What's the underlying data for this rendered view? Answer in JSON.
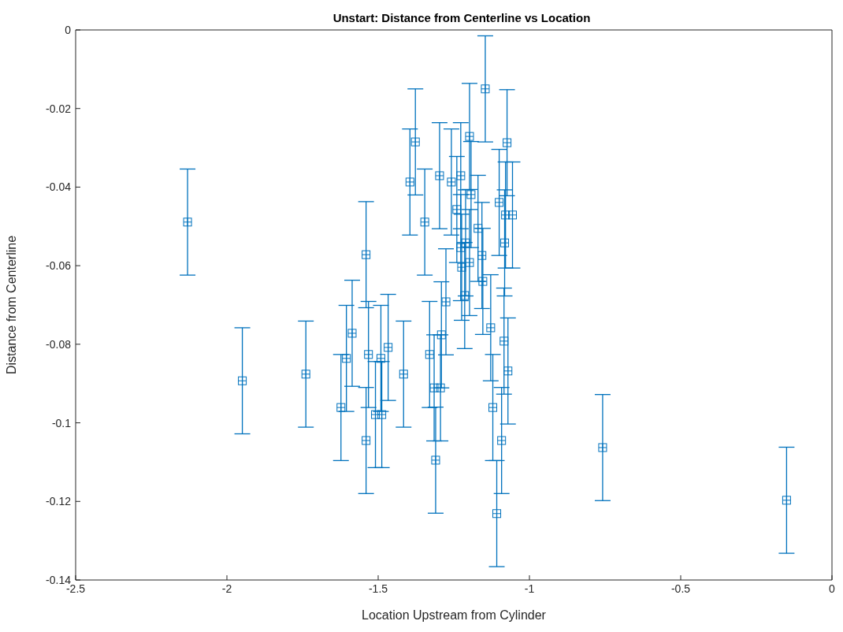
{
  "chart_data": {
    "type": "scatter",
    "title": "Unstart: Distance from Centerline vs Location",
    "xlabel": "Location Upstream from Cylinder",
    "ylabel": "Distance from Centerline",
    "xlim": [
      -2.5,
      0
    ],
    "xticks": [
      -2.5,
      -2,
      -1.5,
      -1,
      -0.5,
      0
    ],
    "ylim": [
      -0.14,
      0
    ],
    "yticks": [
      -0.14,
      -0.12,
      -0.1,
      -0.08,
      -0.06,
      -0.04,
      -0.02,
      0
    ],
    "grid": false,
    "marker": "square",
    "series": [
      {
        "color": "#0072bd",
        "x": [
          -2.13,
          -1.949,
          -1.739,
          -1.623,
          -1.605,
          -1.586,
          -1.54,
          -1.54,
          -1.532,
          -1.509,
          -1.491,
          -1.488,
          -1.467,
          -1.416,
          -1.395,
          -1.377,
          -1.346,
          -1.33,
          -1.315,
          -1.31,
          -1.297,
          -1.294,
          -1.291,
          -1.276,
          -1.258,
          -1.24,
          -1.227,
          -1.227,
          -1.224,
          -1.214,
          -1.211,
          -1.198,
          -1.198,
          -1.193,
          -1.17,
          -1.157,
          -1.154,
          -1.146,
          -1.128,
          -1.121,
          -1.108,
          -1.1,
          -1.092,
          -1.084,
          -1.082,
          -1.079,
          -1.074,
          -1.071,
          -1.056,
          -0.758,
          -0.15
        ],
        "values": [
          -0.0489,
          -0.0893,
          -0.0876,
          -0.0961,
          -0.0836,
          -0.0772,
          -0.0572,
          -0.1045,
          -0.0826,
          -0.0979,
          -0.0836,
          -0.0979,
          -0.0808,
          -0.0876,
          -0.0387,
          -0.0285,
          -0.0489,
          -0.0826,
          -0.0911,
          -0.1095,
          -0.0371,
          -0.0911,
          -0.0776,
          -0.0692,
          -0.0387,
          -0.0457,
          -0.0371,
          -0.0554,
          -0.0604,
          -0.0676,
          -0.0542,
          -0.0271,
          -0.0592,
          -0.0419,
          -0.0505,
          -0.0574,
          -0.064,
          -0.015,
          -0.0758,
          -0.0961,
          -0.1231,
          -0.0439,
          -0.1045,
          -0.0792,
          -0.0542,
          -0.0471,
          -0.0287,
          -0.0868,
          -0.0471,
          -0.1063,
          -0.1197
        ],
        "errors": [
          0.0135,
          0.0135,
          0.0135,
          0.0135,
          0.0135,
          0.0135,
          0.0135,
          0.0135,
          0.0135,
          0.0135,
          0.0135,
          0.0135,
          0.0135,
          0.0135,
          0.0135,
          0.0135,
          0.0135,
          0.0135,
          0.0135,
          0.0135,
          0.0135,
          0.0135,
          0.0135,
          0.0135,
          0.0135,
          0.0135,
          0.0135,
          0.0135,
          0.0135,
          0.0135,
          0.0135,
          0.0135,
          0.0135,
          0.0135,
          0.0135,
          0.0135,
          0.0135,
          0.0135,
          0.0135,
          0.0135,
          0.0135,
          0.0135,
          0.0135,
          0.0135,
          0.0135,
          0.0135,
          0.0135,
          0.0135,
          0.0135,
          0.0135,
          0.0135
        ]
      }
    ]
  }
}
